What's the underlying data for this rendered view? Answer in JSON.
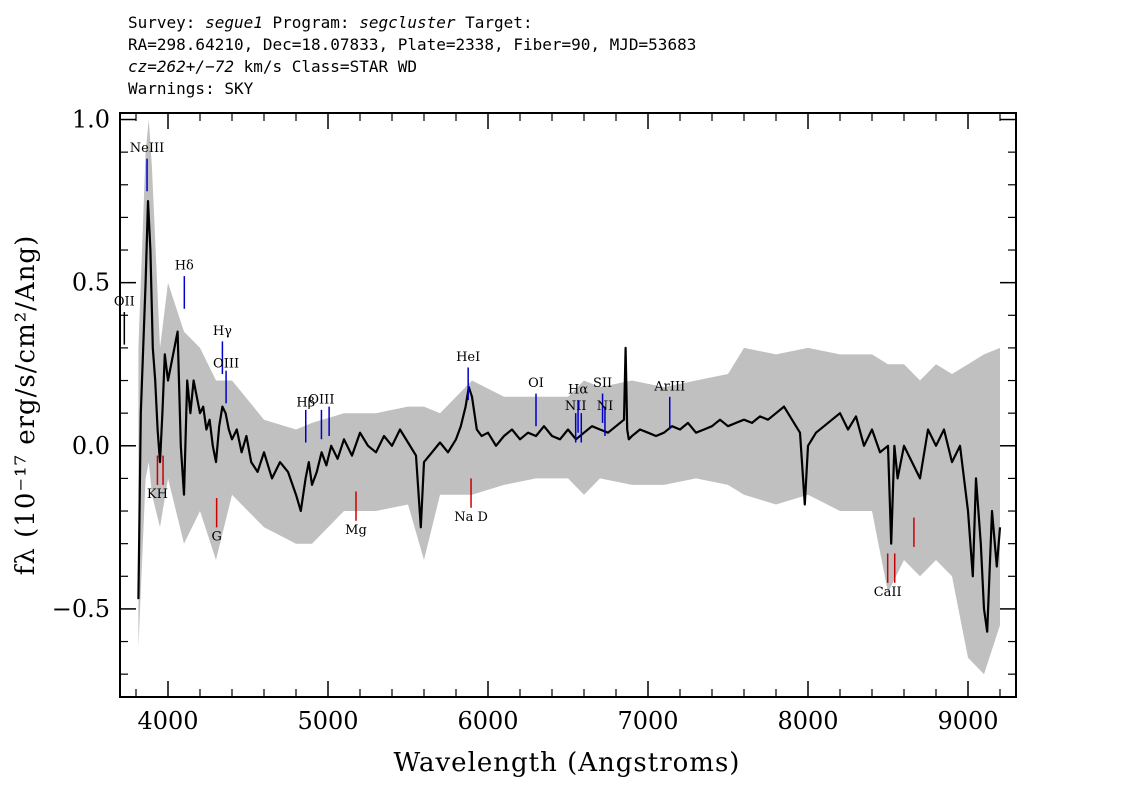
{
  "header": {
    "line1": {
      "survey_label": "Survey: ",
      "survey": "segue1",
      "program_label": " Program: ",
      "program": "segcluster",
      "target_label": " Target:"
    },
    "line2": "RA=298.64210, Dec=18.07833, Plate=2338, Fiber=90, MJD=53683",
    "line3": {
      "cz": "cz=262+/−72",
      "rest": " km/s Class=STAR WD"
    },
    "line4": "Warnings: SKY"
  },
  "chart_data": {
    "type": "line",
    "xlabel": "Wavelength (Angstroms)",
    "ylabel": "fλ (10⁻¹⁷ erg/s/cm²/Ang)",
    "xlim": [
      3700,
      9300
    ],
    "ylim": [
      -0.77,
      1.02
    ],
    "xticks": [
      {
        "value": 4000,
        "label": "4000"
      },
      {
        "value": 5000,
        "label": "5000"
      },
      {
        "value": 6000,
        "label": "6000"
      },
      {
        "value": 7000,
        "label": "7000"
      },
      {
        "value": 8000,
        "label": "8000"
      },
      {
        "value": 9000,
        "label": "9000"
      }
    ],
    "yticks": [
      {
        "value": 1.0,
        "label": "1.0"
      },
      {
        "value": 0.5,
        "label": "0.5"
      },
      {
        "value": 0.0,
        "label": "0.0"
      },
      {
        "value": -0.5,
        "label": "−0.5"
      }
    ],
    "grid": false,
    "legend": "none",
    "colors": {
      "flux": "#000000",
      "noise": "#c0c0c0",
      "emission": "#0000cc",
      "absorption": "#cc0000"
    },
    "series": [
      {
        "role": "flux",
        "x": [
          3815,
          3830,
          3845,
          3860,
          3875,
          3890,
          3905,
          3920,
          3935,
          3950,
          3965,
          3980,
          4000,
          4020,
          4040,
          4060,
          4080,
          4100,
          4120,
          4140,
          4160,
          4180,
          4200,
          4220,
          4240,
          4260,
          4280,
          4300,
          4320,
          4340,
          4360,
          4380,
          4400,
          4430,
          4460,
          4490,
          4520,
          4560,
          4600,
          4650,
          4700,
          4750,
          4800,
          4830,
          4860,
          4880,
          4900,
          4930,
          4960,
          4990,
          5020,
          5060,
          5100,
          5150,
          5200,
          5250,
          5300,
          5350,
          5400,
          5450,
          5500,
          5550,
          5580,
          5600,
          5650,
          5700,
          5750,
          5800,
          5830,
          5860,
          5880,
          5900,
          5930,
          5960,
          6000,
          6050,
          6100,
          6150,
          6200,
          6250,
          6300,
          6350,
          6400,
          6450,
          6500,
          6550,
          6600,
          6650,
          6700,
          6750,
          6800,
          6850,
          6860,
          6870,
          6880,
          6900,
          6950,
          7000,
          7050,
          7100,
          7150,
          7200,
          7250,
          7300,
          7350,
          7400,
          7450,
          7500,
          7550,
          7600,
          7650,
          7700,
          7750,
          7800,
          7850,
          7900,
          7950,
          7980,
          8000,
          8050,
          8100,
          8150,
          8200,
          8250,
          8300,
          8350,
          8400,
          8450,
          8500,
          8520,
          8540,
          8560,
          8600,
          8650,
          8700,
          8750,
          8800,
          8850,
          8900,
          8950,
          9000,
          9030,
          9050,
          9080,
          9100,
          9120,
          9150,
          9180,
          9200
        ],
        "y": [
          -0.47,
          0.1,
          0.3,
          0.5,
          0.75,
          0.6,
          0.3,
          0.2,
          0.05,
          -0.05,
          0.1,
          0.28,
          0.2,
          0.25,
          0.3,
          0.35,
          0.0,
          -0.15,
          0.2,
          0.1,
          0.2,
          0.15,
          0.1,
          0.12,
          0.05,
          0.08,
          0.0,
          -0.05,
          0.06,
          0.12,
          0.1,
          0.05,
          0.02,
          0.05,
          -0.02,
          0.03,
          -0.05,
          -0.08,
          -0.02,
          -0.1,
          -0.05,
          -0.08,
          -0.15,
          -0.2,
          -0.1,
          -0.05,
          -0.12,
          -0.08,
          -0.02,
          -0.06,
          0.0,
          -0.04,
          0.02,
          -0.03,
          0.04,
          0.0,
          -0.02,
          0.03,
          0.0,
          0.05,
          0.01,
          -0.03,
          -0.25,
          -0.05,
          -0.02,
          0.01,
          -0.02,
          0.02,
          0.06,
          0.12,
          0.18,
          0.15,
          0.05,
          0.03,
          0.04,
          0.0,
          0.03,
          0.05,
          0.02,
          0.04,
          0.03,
          0.06,
          0.03,
          0.02,
          0.05,
          0.02,
          0.04,
          0.06,
          0.05,
          0.04,
          0.06,
          0.08,
          0.3,
          0.05,
          0.02,
          0.03,
          0.05,
          0.04,
          0.03,
          0.04,
          0.06,
          0.05,
          0.07,
          0.04,
          0.05,
          0.06,
          0.08,
          0.06,
          0.07,
          0.08,
          0.07,
          0.09,
          0.08,
          0.1,
          0.12,
          0.08,
          0.04,
          -0.18,
          0.0,
          0.04,
          0.06,
          0.08,
          0.1,
          0.05,
          0.09,
          0.0,
          0.05,
          -0.02,
          0.0,
          -0.3,
          0.0,
          -0.1,
          0.0,
          -0.05,
          -0.1,
          0.05,
          0.0,
          0.05,
          -0.05,
          0.0,
          -0.2,
          -0.4,
          -0.1,
          -0.3,
          -0.5,
          -0.57,
          -0.2,
          -0.37,
          -0.25
        ]
      },
      {
        "role": "noise",
        "x": [
          3815,
          3860,
          3880,
          3900,
          3950,
          4000,
          4100,
          4200,
          4300,
          4400,
          4600,
          4800,
          4900,
          5100,
          5300,
          5500,
          5600,
          5700,
          5900,
          6100,
          6300,
          6500,
          6600,
          6700,
          6900,
          7100,
          7300,
          7500,
          7600,
          7800,
          8000,
          8200,
          8400,
          8500,
          8600,
          8700,
          8800,
          8900,
          9000,
          9100,
          9200
        ],
        "upper": [
          0.3,
          0.9,
          1.0,
          0.85,
          0.3,
          0.5,
          0.35,
          0.3,
          0.2,
          0.2,
          0.08,
          0.05,
          0.07,
          0.1,
          0.1,
          0.12,
          0.12,
          0.1,
          0.2,
          0.15,
          0.15,
          0.15,
          0.2,
          0.18,
          0.2,
          0.18,
          0.2,
          0.22,
          0.3,
          0.28,
          0.3,
          0.28,
          0.28,
          0.25,
          0.25,
          0.2,
          0.25,
          0.22,
          0.25,
          0.28,
          0.3
        ],
        "lower": [
          -0.62,
          -0.1,
          -0.05,
          -0.15,
          -0.25,
          -0.1,
          -0.3,
          -0.2,
          -0.35,
          -0.15,
          -0.25,
          -0.3,
          -0.3,
          -0.2,
          -0.2,
          -0.18,
          -0.35,
          -0.15,
          -0.15,
          -0.12,
          -0.1,
          -0.1,
          -0.15,
          -0.1,
          -0.12,
          -0.12,
          -0.1,
          -0.12,
          -0.15,
          -0.18,
          -0.15,
          -0.2,
          -0.2,
          -0.45,
          -0.35,
          -0.4,
          -0.35,
          -0.4,
          -0.65,
          -0.7,
          -0.55
        ]
      }
    ],
    "annotations": {
      "emission": [
        {
          "label": "OII",
          "x": 3727,
          "y0": 0.31,
          "y1": 0.41,
          "label_y": 0.43,
          "color": "#000000"
        },
        {
          "label": "NeIII",
          "x": 3869,
          "y0": 0.78,
          "y1": 0.88,
          "label_y": 0.9,
          "color": "#0000cc"
        },
        {
          "label": "Hδ",
          "x": 4102,
          "y0": 0.42,
          "y1": 0.52,
          "label_y": 0.54,
          "color": "#0000cc"
        },
        {
          "label": "Hγ",
          "x": 4340,
          "y0": 0.22,
          "y1": 0.32,
          "label_y": 0.34,
          "color": "#0000cc"
        },
        {
          "label": "OIII",
          "x": 4363,
          "y0": 0.13,
          "y1": 0.23,
          "label_y": 0.24,
          "color": "#0000cc"
        },
        {
          "label": "Hβ",
          "x": 4861,
          "y0": 0.01,
          "y1": 0.11,
          "label_y": 0.12,
          "color": "#0000cc"
        },
        {
          "label": "OIII",
          "x": 4959,
          "y0": 0.02,
          "y1": 0.11,
          "label_y": 0.13,
          "color": "#0000cc"
        },
        {
          "label": "",
          "x": 5007,
          "y0": 0.03,
          "y1": 0.12,
          "label_y": 0.0,
          "color": "#0000cc"
        },
        {
          "label": "HeI",
          "x": 5876,
          "y0": 0.14,
          "y1": 0.24,
          "label_y": 0.26,
          "color": "#0000cc"
        },
        {
          "label": "OI",
          "x": 6300,
          "y0": 0.06,
          "y1": 0.16,
          "label_y": 0.18,
          "color": "#0000cc"
        },
        {
          "label": "NII",
          "x": 6548,
          "y0": 0.01,
          "y1": 0.1,
          "label_y": 0.11,
          "color": "#0000cc"
        },
        {
          "label": "Hα",
          "x": 6563,
          "y0": 0.04,
          "y1": 0.14,
          "label_y": 0.16,
          "color": "#0000cc"
        },
        {
          "label": "",
          "x": 6583,
          "y0": 0.01,
          "y1": 0.1,
          "label_y": 0.0,
          "color": "#0000cc"
        },
        {
          "label": "SII",
          "x": 6716,
          "y0": 0.07,
          "y1": 0.16,
          "label_y": 0.18,
          "color": "#0000cc"
        },
        {
          "label": "NI",
          "x": 6731,
          "y0": 0.03,
          "y1": 0.12,
          "label_y": 0.11,
          "color": "#0000cc"
        },
        {
          "label": "ArIII",
          "x": 7136,
          "y0": 0.05,
          "y1": 0.15,
          "label_y": 0.17,
          "color": "#0000cc"
        }
      ],
      "absorption": [
        {
          "label": "KH",
          "x": 3934,
          "y0": -0.03,
          "y1": -0.12,
          "label_y": -0.16,
          "color": "#cc0000"
        },
        {
          "label": "",
          "x": 3969,
          "y0": -0.03,
          "y1": -0.12,
          "label_y": 0.0,
          "color": "#cc0000"
        },
        {
          "label": "G",
          "x": 4304,
          "y0": -0.16,
          "y1": -0.25,
          "label_y": -0.29,
          "color": "#cc0000"
        },
        {
          "label": "Mg",
          "x": 5175,
          "y0": -0.14,
          "y1": -0.23,
          "label_y": -0.27,
          "color": "#cc0000"
        },
        {
          "label": "Na D",
          "x": 5894,
          "y0": -0.1,
          "y1": -0.19,
          "label_y": -0.23,
          "color": "#cc0000"
        },
        {
          "label": "CaII",
          "x": 8498,
          "y0": -0.33,
          "y1": -0.42,
          "label_y": -0.46,
          "color": "#cc0000"
        },
        {
          "label": "",
          "x": 8542,
          "y0": -0.33,
          "y1": -0.42,
          "label_y": 0.0,
          "color": "#cc0000"
        },
        {
          "label": "",
          "x": 8662,
          "y0": -0.22,
          "y1": -0.31,
          "label_y": 0.0,
          "color": "#cc0000"
        }
      ]
    }
  }
}
